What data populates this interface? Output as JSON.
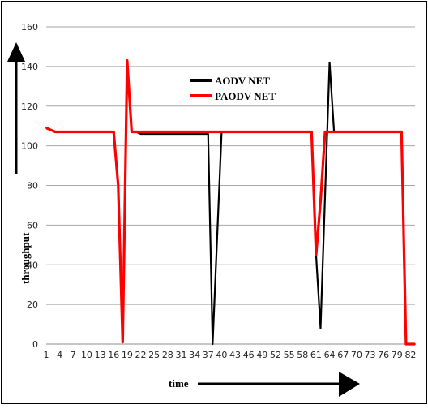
{
  "chart_data": {
    "type": "line",
    "title": "",
    "xlabel": "time",
    "ylabel": "throughput",
    "ylim": [
      0,
      160
    ],
    "yticks": [
      0,
      20,
      40,
      60,
      80,
      100,
      120,
      140,
      160
    ],
    "xlim": [
      1,
      83
    ],
    "xticks": [
      1,
      4,
      7,
      10,
      13,
      16,
      19,
      22,
      25,
      28,
      31,
      34,
      37,
      40,
      43,
      46,
      49,
      52,
      55,
      58,
      61,
      64,
      67,
      70,
      73,
      76,
      79,
      82
    ],
    "grid": "horizontal",
    "legend_position": "top-center",
    "series": [
      {
        "name": "AODV NET",
        "color": "#000000",
        "points": [
          [
            1,
            109
          ],
          [
            2,
            108
          ],
          [
            3,
            107
          ],
          [
            4,
            107
          ],
          [
            5,
            107
          ],
          [
            10,
            107
          ],
          [
            15,
            107
          ],
          [
            16,
            107
          ],
          [
            17,
            80
          ],
          [
            18,
            1
          ],
          [
            19,
            143
          ],
          [
            20,
            107
          ],
          [
            21,
            107
          ],
          [
            22,
            106
          ],
          [
            30,
            106
          ],
          [
            37,
            106
          ],
          [
            38,
            0
          ],
          [
            40,
            107
          ],
          [
            42,
            107
          ],
          [
            45,
            107
          ],
          [
            55,
            107
          ],
          [
            60,
            107
          ],
          [
            61,
            45
          ],
          [
            62,
            8
          ],
          [
            64,
            142
          ],
          [
            65,
            107
          ],
          [
            66,
            107
          ],
          [
            70,
            107
          ],
          [
            75,
            107
          ],
          [
            80,
            107
          ],
          [
            81,
            0
          ],
          [
            82,
            0
          ],
          [
            83,
            0
          ]
        ]
      },
      {
        "name": "PAODV NET",
        "color": "#ff0000",
        "points": [
          [
            1,
            109
          ],
          [
            2,
            108
          ],
          [
            3,
            107
          ],
          [
            4,
            107
          ],
          [
            5,
            107
          ],
          [
            10,
            107
          ],
          [
            15,
            107
          ],
          [
            16,
            107
          ],
          [
            17,
            80
          ],
          [
            18,
            1
          ],
          [
            19,
            143
          ],
          [
            20,
            107
          ],
          [
            21,
            107
          ],
          [
            22,
            107
          ],
          [
            30,
            107
          ],
          [
            37,
            107
          ],
          [
            38,
            107
          ],
          [
            40,
            107
          ],
          [
            42,
            107
          ],
          [
            45,
            107
          ],
          [
            55,
            107
          ],
          [
            60,
            107
          ],
          [
            61,
            45
          ],
          [
            62,
            72
          ],
          [
            63,
            107
          ],
          [
            65,
            107
          ],
          [
            66,
            107
          ],
          [
            70,
            107
          ],
          [
            75,
            107
          ],
          [
            80,
            107
          ],
          [
            81,
            0
          ],
          [
            82,
            0
          ],
          [
            83,
            0
          ]
        ]
      }
    ]
  }
}
